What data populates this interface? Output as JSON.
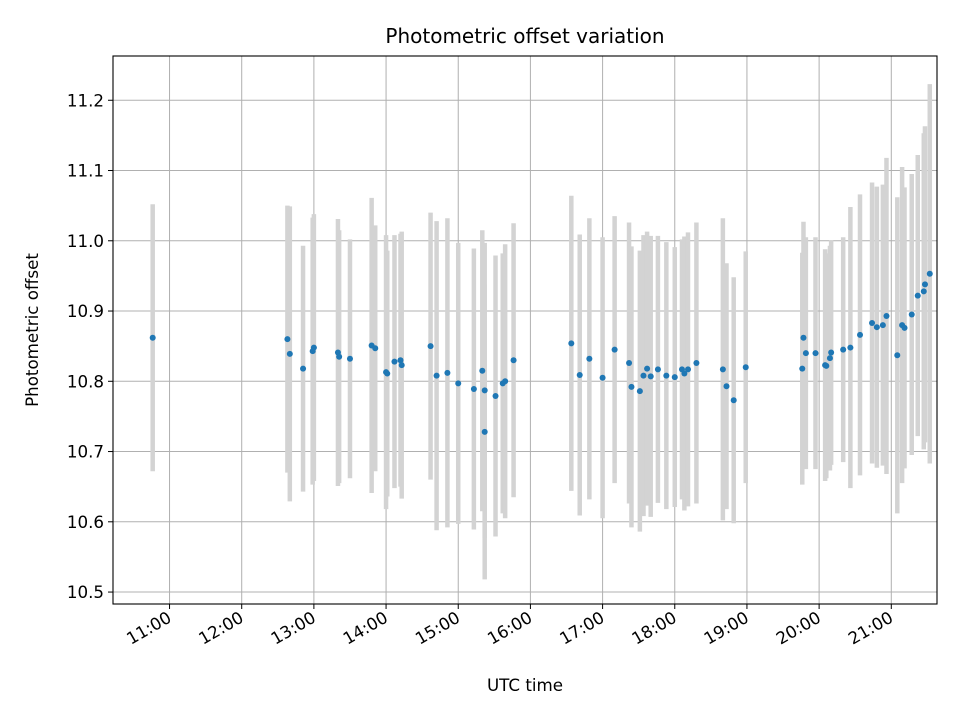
{
  "chart_data": {
    "type": "scatter",
    "title": "Photometric offset variation",
    "xlabel": "UTC time",
    "ylabel": "Photometric offset",
    "x_unit": "hours UTC",
    "xlim": [
      "10:13",
      "21:38"
    ],
    "ylim": [
      10.483,
      11.263
    ],
    "xticks": [
      "11:00",
      "12:00",
      "13:00",
      "14:00",
      "15:00",
      "16:00",
      "17:00",
      "18:00",
      "19:00",
      "20:00",
      "21:00"
    ],
    "yticks": [
      10.5,
      10.6,
      10.7,
      10.8,
      10.9,
      11.0,
      11.1,
      11.2
    ],
    "ytick_labels": [
      "10.5",
      "10.6",
      "10.7",
      "10.8",
      "10.9",
      "11.0",
      "11.1",
      "11.2"
    ],
    "grid": true,
    "point_color": "#1f77b4",
    "errorbar_color": "#d3d3d3",
    "series": [
      {
        "x": [
          "10:46",
          "12:38",
          "12:40",
          "12:51",
          "12:59",
          "13:00",
          "13:20",
          "13:21",
          "13:30",
          "13:48",
          "13:51",
          "14:00",
          "14:01",
          "14:07",
          "14:12",
          "14:13",
          "14:37",
          "14:42",
          "14:51",
          "15:00",
          "15:13",
          "15:20",
          "15:22",
          "15:22",
          "15:31",
          "15:37",
          "15:39",
          "15:46",
          "16:34",
          "16:41",
          "16:49",
          "17:00",
          "17:10",
          "17:22",
          "17:24",
          "17:31",
          "17:34",
          "17:37",
          "17:40",
          "17:46",
          "17:53",
          "18:00",
          "18:06",
          "18:08",
          "18:11",
          "18:18",
          "18:40",
          "18:43",
          "18:49",
          "18:59",
          "19:46",
          "19:47",
          "19:49",
          "19:57",
          "20:05",
          "20:06",
          "20:09",
          "20:10",
          "20:20",
          "20:26",
          "20:34",
          "20:44",
          "20:48",
          "20:53",
          "20:56",
          "21:05",
          "21:09",
          "21:11",
          "21:17",
          "21:22",
          "21:27",
          "21:28",
          "21:32"
        ],
        "y": [
          10.862,
          10.86,
          10.839,
          10.818,
          10.843,
          10.848,
          10.841,
          10.835,
          10.832,
          10.851,
          10.847,
          10.813,
          10.811,
          10.828,
          10.83,
          10.823,
          10.85,
          10.808,
          10.812,
          10.797,
          10.789,
          10.815,
          10.787,
          10.728,
          10.779,
          10.797,
          10.8,
          10.83,
          10.854,
          10.809,
          10.832,
          10.805,
          10.845,
          10.826,
          10.792,
          10.786,
          10.808,
          10.818,
          10.807,
          10.817,
          10.808,
          10.806,
          10.817,
          10.811,
          10.817,
          10.826,
          10.817,
          10.793,
          10.773,
          10.82,
          10.818,
          10.862,
          10.84,
          10.84,
          10.823,
          10.822,
          10.833,
          10.841,
          10.845,
          10.848,
          10.866,
          10.883,
          10.877,
          10.88,
          10.893,
          10.837,
          10.88,
          10.876,
          10.895,
          10.922,
          10.928,
          10.938,
          10.953
        ],
        "yerr": [
          0.19,
          0.19,
          0.21,
          0.175,
          0.19,
          0.19,
          0.19,
          0.18,
          0.17,
          0.21,
          0.175,
          0.195,
          0.175,
          0.18,
          0.18,
          0.19,
          0.19,
          0.22,
          0.22,
          0.2,
          0.2,
          0.2,
          0.21,
          0.21,
          0.2,
          0.185,
          0.195,
          0.195,
          0.21,
          0.2,
          0.2,
          0.2,
          0.19,
          0.2,
          0.2,
          0.2,
          0.2,
          0.195,
          0.2,
          0.19,
          0.19,
          0.185,
          0.185,
          0.195,
          0.195,
          0.2,
          0.215,
          0.175,
          0.175,
          0.165,
          0.165,
          0.165,
          0.165,
          0.165,
          0.165,
          0.16,
          0.16,
          0.16,
          0.16,
          0.2,
          0.2,
          0.2,
          0.2,
          0.2,
          0.225,
          0.225,
          0.225,
          0.2,
          0.2,
          0.2,
          0.225,
          0.225,
          0.27
        ]
      }
    ]
  }
}
